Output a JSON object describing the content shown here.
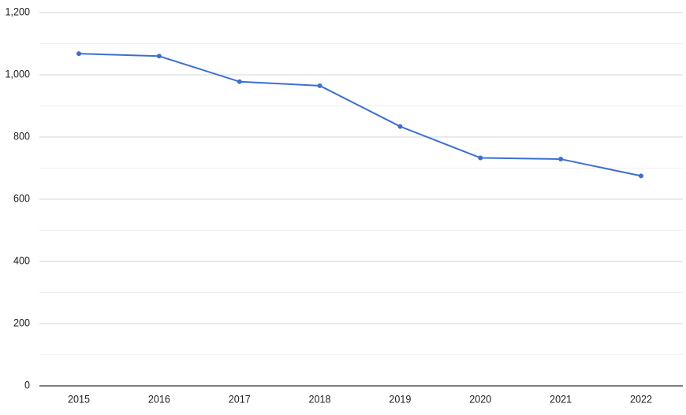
{
  "chart_data": {
    "type": "line",
    "title": "",
    "xlabel": "",
    "ylabel": "",
    "categories": [
      "2015",
      "2016",
      "2017",
      "2018",
      "2019",
      "2020",
      "2021",
      "2022"
    ],
    "series": [
      {
        "values": [
          1068,
          1060,
          978,
          965,
          834,
          733,
          729,
          675
        ],
        "color": "#3c6fd1"
      }
    ],
    "ylim": [
      0,
      1200
    ],
    "y_ticks": [
      0,
      200,
      400,
      600,
      800,
      1000,
      1200
    ],
    "y_tick_labels": [
      "0",
      "200",
      "400",
      "600",
      "800",
      "1,000",
      "1,200"
    ],
    "grid": true,
    "minor_grid": true,
    "legend": "none"
  }
}
